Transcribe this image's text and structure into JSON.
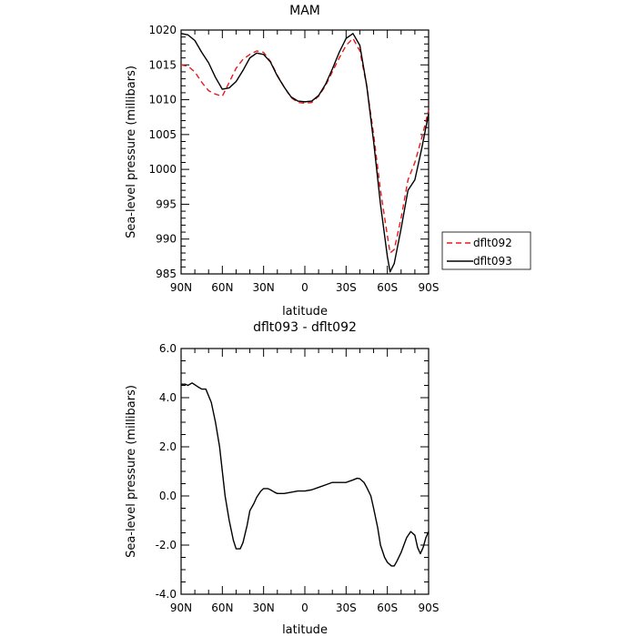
{
  "chart_data": [
    {
      "type": "line",
      "title": "MAM",
      "xlabel": "latitude",
      "ylabel": "Sea-level pressure (millibars)",
      "xlim": [
        90,
        -90
      ],
      "ylim": [
        985,
        1020
      ],
      "xticks": [
        {
          "v": 90,
          "label": "90N"
        },
        {
          "v": 60,
          "label": "60N"
        },
        {
          "v": 30,
          "label": "30N"
        },
        {
          "v": 0,
          "label": "0"
        },
        {
          "v": -30,
          "label": "30S"
        },
        {
          "v": -60,
          "label": "60S"
        },
        {
          "v": -90,
          "label": "90S"
        }
      ],
      "yticks": [
        {
          "v": 1020,
          "label": "1020"
        },
        {
          "v": 1015,
          "label": "1015"
        },
        {
          "v": 1010,
          "label": "1010"
        },
        {
          "v": 1005,
          "label": "1005"
        },
        {
          "v": 1000,
          "label": "1000"
        },
        {
          "v": 995,
          "label": "995"
        },
        {
          "v": 990,
          "label": "990"
        },
        {
          "v": 985,
          "label": "985"
        }
      ],
      "legend": {
        "placement": "right"
      },
      "series": [
        {
          "name": "dflt092",
          "color": "#e8191c",
          "dash": "dashed",
          "x": [
            90,
            85,
            80,
            75,
            70,
            65,
            60,
            55,
            50,
            45,
            40,
            35,
            30,
            25,
            20,
            15,
            10,
            5,
            0,
            -5,
            -10,
            -15,
            -20,
            -25,
            -30,
            -35,
            -40,
            -45,
            -50,
            -55,
            -60,
            -62,
            -65,
            -70,
            -75,
            -80,
            -85,
            -90
          ],
          "y": [
            1015.0,
            1014.8,
            1014.0,
            1012.5,
            1011.3,
            1010.8,
            1010.5,
            1012.5,
            1014.5,
            1015.8,
            1016.5,
            1017.0,
            1016.8,
            1015.5,
            1013.5,
            1011.8,
            1010.3,
            1009.6,
            1009.5,
            1009.6,
            1010.5,
            1012.0,
            1014.0,
            1016.0,
            1017.8,
            1018.8,
            1017.0,
            1012.0,
            1005.0,
            997.0,
            990.5,
            988.0,
            988.5,
            993.0,
            998.5,
            1001.0,
            1004.5,
            1008.5
          ]
        },
        {
          "name": "dflt093",
          "color": "#000000",
          "dash": "solid",
          "x": [
            90,
            85,
            80,
            75,
            70,
            65,
            60,
            55,
            50,
            45,
            40,
            35,
            30,
            25,
            20,
            15,
            10,
            5,
            0,
            -5,
            -10,
            -15,
            -20,
            -25,
            -30,
            -35,
            -40,
            -45,
            -50,
            -55,
            -60,
            -62,
            -65,
            -70,
            -75,
            -80,
            -85,
            -90
          ],
          "y": [
            1019.5,
            1019.3,
            1018.5,
            1016.8,
            1015.3,
            1013.2,
            1011.5,
            1011.7,
            1012.6,
            1014.2,
            1016.0,
            1016.7,
            1016.5,
            1015.4,
            1013.4,
            1011.8,
            1010.4,
            1009.8,
            1009.7,
            1009.8,
            1010.6,
            1012.2,
            1014.4,
            1016.8,
            1018.8,
            1019.5,
            1017.8,
            1012.0,
            1004.0,
            995.0,
            987.5,
            985.3,
            986.5,
            991.5,
            997.0,
            998.5,
            1003.0,
            1008.0
          ]
        }
      ]
    },
    {
      "type": "line",
      "title": "dflt093 - dflt092",
      "xlabel": "latitude",
      "ylabel": "Sea-level pressure (millibars)",
      "xlim": [
        90,
        -90
      ],
      "ylim": [
        -4.0,
        6.0
      ],
      "xticks": [
        {
          "v": 90,
          "label": "90N"
        },
        {
          "v": 60,
          "label": "60N"
        },
        {
          "v": 30,
          "label": "30N"
        },
        {
          "v": 0,
          "label": "0"
        },
        {
          "v": -30,
          "label": "30S"
        },
        {
          "v": -60,
          "label": "60S"
        },
        {
          "v": -90,
          "label": "90S"
        }
      ],
      "yticks": [
        {
          "v": 6,
          "label": "6.0"
        },
        {
          "v": 4,
          "label": "4.0"
        },
        {
          "v": 2,
          "label": "2.0"
        },
        {
          "v": 0,
          "label": "0.0"
        },
        {
          "v": -2,
          "label": "-2.0"
        },
        {
          "v": -4,
          "label": "-4.0"
        }
      ],
      "series": [
        {
          "color": "#000000",
          "dash": "solid",
          "x": [
            90,
            87,
            85,
            82,
            78,
            75,
            72,
            68,
            65,
            62,
            60,
            58,
            55,
            52,
            50,
            47,
            45,
            42,
            40,
            37,
            35,
            32,
            30,
            27,
            25,
            22,
            20,
            15,
            10,
            5,
            0,
            -5,
            -10,
            -15,
            -20,
            -25,
            -30,
            -35,
            -38,
            -40,
            -43,
            -45,
            -48,
            -50,
            -53,
            -55,
            -58,
            -60,
            -63,
            -65,
            -67,
            -70,
            -72,
            -74,
            -77,
            -80,
            -82,
            -84,
            -86,
            -88,
            -90
          ],
          "y": [
            4.55,
            4.55,
            4.5,
            4.6,
            4.45,
            4.35,
            4.35,
            3.8,
            3.0,
            2.0,
            1.0,
            0.0,
            -1.0,
            -1.8,
            -2.15,
            -2.15,
            -1.9,
            -1.2,
            -0.6,
            -0.3,
            -0.05,
            0.2,
            0.3,
            0.3,
            0.25,
            0.15,
            0.1,
            0.1,
            0.15,
            0.2,
            0.2,
            0.25,
            0.35,
            0.45,
            0.55,
            0.55,
            0.55,
            0.65,
            0.72,
            0.7,
            0.55,
            0.35,
            0.0,
            -0.5,
            -1.3,
            -2.0,
            -2.5,
            -2.7,
            -2.85,
            -2.85,
            -2.65,
            -2.3,
            -2.0,
            -1.7,
            -1.45,
            -1.6,
            -2.1,
            -2.35,
            -2.1,
            -1.7,
            -1.45
          ]
        }
      ]
    }
  ]
}
